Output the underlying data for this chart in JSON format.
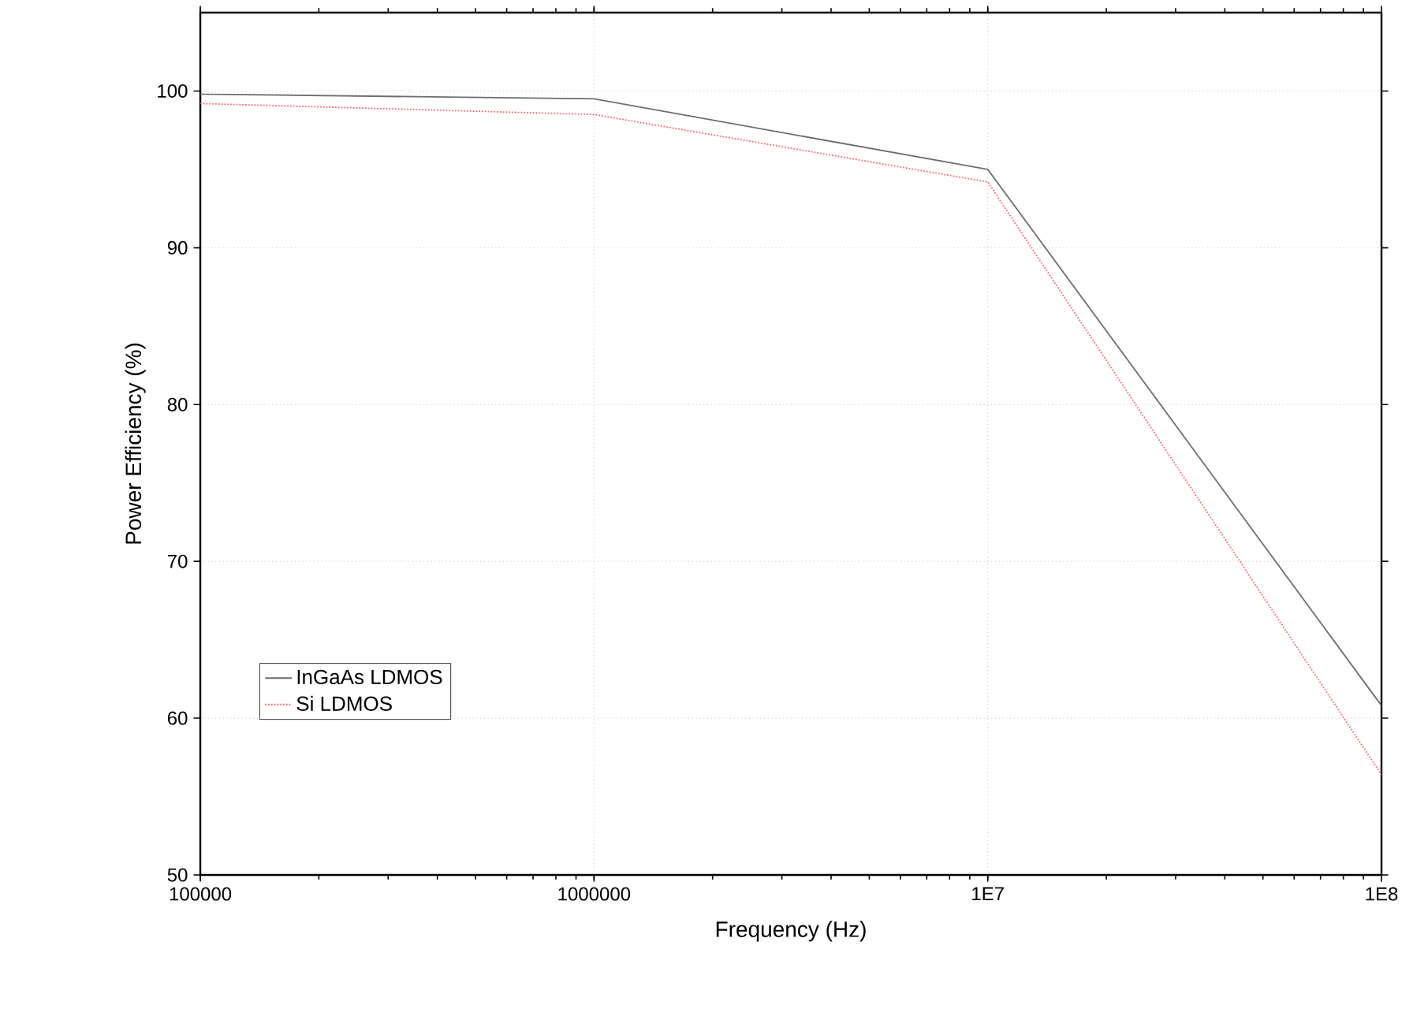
{
  "chart_data": {
    "type": "line",
    "xlabel": "Frequency (Hz)",
    "ylabel": "Power Efficiency (%)",
    "x": [
      100000,
      1000000,
      10000000,
      100000000
    ],
    "series": [
      {
        "name": "InGaAs LDMOS",
        "color": "#6e6e6e",
        "line_style": "solid",
        "values": [
          99.8,
          99.5,
          95.0,
          60.8
        ]
      },
      {
        "name": "Si LDMOS",
        "color": "#ff6670",
        "line_style": "dotted",
        "values": [
          99.2,
          98.5,
          94.2,
          56.4
        ]
      }
    ],
    "log": "x",
    "xlim": [
      100000,
      100000000
    ],
    "ylim": [
      50,
      105
    ],
    "xticks": [
      100000,
      1000000,
      {
        "value": 10000000,
        "label": "1E7"
      },
      {
        "value": 100000000,
        "label": "1E8"
      }
    ],
    "yticks": [
      50,
      60,
      70,
      80,
      90,
      100
    ],
    "grid": true,
    "legend": "bottom left",
    "marker": "none"
  }
}
